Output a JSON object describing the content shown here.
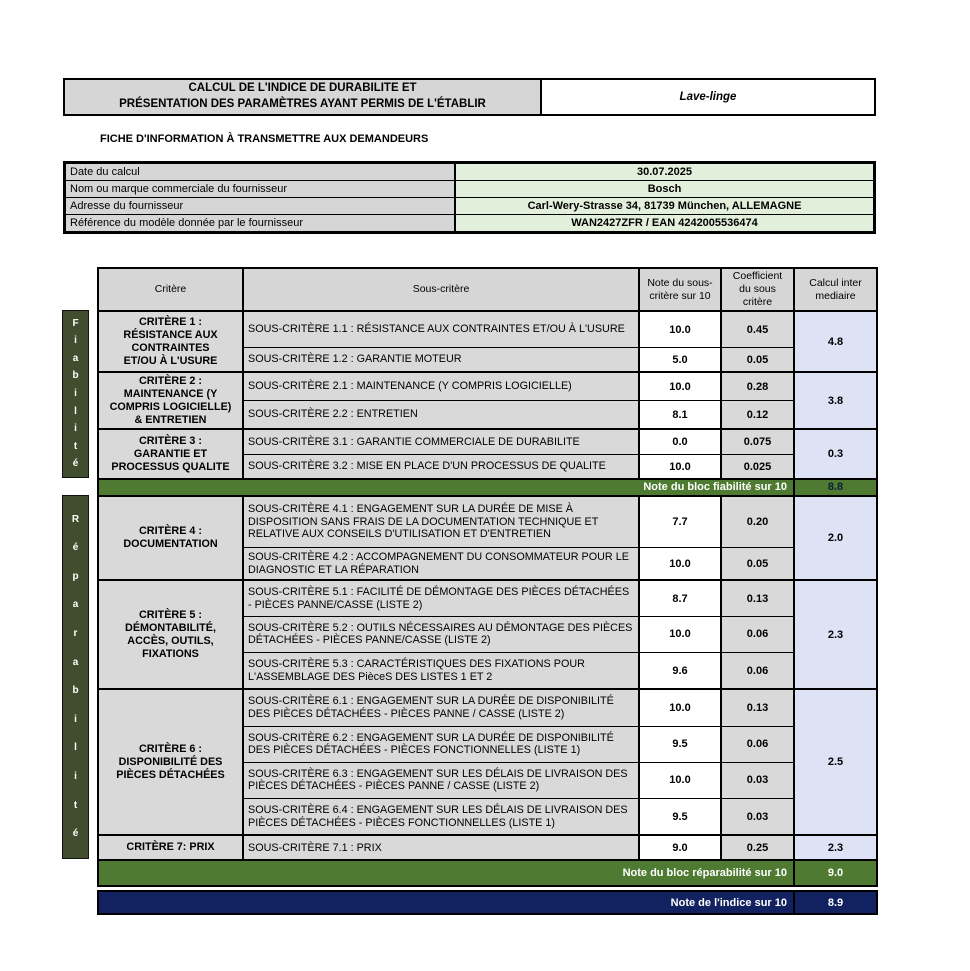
{
  "header": {
    "title_line1": "CALCUL DE L'INDICE DE DURABILITE ET",
    "title_line2": "PRÉSENTATION DES PARAMÈTRES AYANT PERMIS DE L'ÉTABLIR",
    "product": "Lave-linge"
  },
  "subtitle": "FICHE D'INFORMATION À TRANSMETTRE AUX DEMANDEURS",
  "info_table": {
    "rows": [
      {
        "label": "Date du calcul",
        "value": "30.07.2025"
      },
      {
        "label": "Nom ou marque commerciale du fournisseur",
        "value": "Bosch"
      },
      {
        "label": "Adresse du fournisseur",
        "value": "Carl-Wery-Strasse 34, 81739 München, ALLEMAGNE"
      },
      {
        "label": "Référence du modèle donnée par le fournisseur",
        "value": "WAN2427ZFR / EAN 4242005536474"
      }
    ]
  },
  "main_table": {
    "headers": {
      "critere": "Critère",
      "sous_critere": "Sous-critère",
      "note": "Note du sous-critère sur 10",
      "coefficient": "Coefficient du sous critère",
      "calcul": "Calcul inter mediaire"
    },
    "blocks": [
      {
        "band_label": "Fiabilité",
        "groups": [
          {
            "critere": "CRITÈRE 1 :\nRÉSISTANCE AUX\nCONTRAINTES\nET/OU À L'USURE",
            "calc": "4.8",
            "rows": [
              {
                "label": "SOUS-CRITÈRE 1.1 : RÉSISTANCE AUX CONTRAINTES ET/OU À L'USURE",
                "note": "10.0",
                "coef": "0.45"
              },
              {
                "label": "SOUS-CRITÈRE 1.2 : GARANTIE MOTEUR",
                "note": "5.0",
                "coef": "0.05"
              }
            ]
          },
          {
            "critere": "CRITÈRE 2 :\nMAINTENANCE (Y\nCOMPRIS LOGICIELLE)\n& ENTRETIEN",
            "calc": "3.8",
            "rows": [
              {
                "label": "SOUS-CRITÈRE 2.1 : MAINTENANCE (Y COMPRIS LOGICIELLE)",
                "note": "10.0",
                "coef": "0.28"
              },
              {
                "label": "SOUS-CRITÈRE 2.2 : ENTRETIEN",
                "note": "8.1",
                "coef": "0.12"
              }
            ]
          },
          {
            "critere": "CRITÈRE 3 :\nGARANTIE ET\nPROCESSUS QUALITE",
            "calc": "0.3",
            "rows": [
              {
                "label": "SOUS-CRITÈRE 3.1 : GARANTIE COMMERCIALE DE DURABILITE",
                "note": "0.0",
                "coef": "0.075"
              },
              {
                "label": "SOUS-CRITÈRE 3.2 : MISE EN PLACE D'UN PROCESSUS DE QUALITE",
                "note": "10.0",
                "coef": "0.025"
              }
            ]
          }
        ],
        "summary": {
          "label": "Note du bloc fiabilité sur 10",
          "value": "8.8"
        }
      },
      {
        "band_label": "Réparabilité",
        "groups": [
          {
            "critere": "CRITÈRE 4 :\nDOCUMENTATION",
            "calc": "2.0",
            "rows": [
              {
                "label": "SOUS-CRITÈRE 4.1 : ENGAGEMENT SUR LA DURÉE DE MISE À DISPOSITION SANS FRAIS DE LA DOCUMENTATION TECHNIQUE ET RELATIVE AUX CONSEILS D'UTILISATION ET D'ENTRETIEN",
                "note": "7.7",
                "coef": "0.20"
              },
              {
                "label": "SOUS-CRITÈRE 4.2 : ACCOMPAGNEMENT DU CONSOMMATEUR POUR LE DIAGNOSTIC ET LA RÉPARATION",
                "note": "10.0",
                "coef": "0.05"
              }
            ]
          },
          {
            "critere": "CRITÈRE 5 :\nDÉMONTABILITÉ,\nACCÈS, OUTILS,\nFIXATIONS",
            "calc": "2.3",
            "rows": [
              {
                "label": "SOUS-CRITÈRE 5.1 : FACILITÉ DE DÉMONTAGE DES PIÈCES DÉTACHÉES - PIÈCES PANNE/CASSE (LISTE 2)",
                "note": "8.7",
                "coef": "0.13"
              },
              {
                "label": "SOUS-CRITÈRE 5.2 : OUTILS NÉCESSAIRES AU DÉMONTAGE DES PIÈCES DÉTACHÉES - PIÈCES PANNE/CASSE (LISTE 2)",
                "note": "10.0",
                "coef": "0.06"
              },
              {
                "label": "SOUS-CRITÈRE 5.3 : CARACTÉRISTIQUES DES FIXATIONS POUR L'ASSEMBLAGE DES PièceS DES LISTES 1 ET 2",
                "note": "9.6",
                "coef": "0.06"
              }
            ]
          },
          {
            "critere": "CRITÈRE 6 :\nDISPONIBILITÉ DES\nPIÈCES DÉTACHÉES",
            "calc": "2.5",
            "rows": [
              {
                "label": "SOUS-CRITÈRE 6.1 : ENGAGEMENT SUR LA DURÉE DE DISPONIBILITÉ DES PIÈCES DÉTACHÉES - PIÈCES PANNE / CASSE (LISTE 2)",
                "note": "10.0",
                "coef": "0.13"
              },
              {
                "label": "SOUS-CRITÈRE 6.2 : ENGAGEMENT SUR LA DURÉE DE DISPONIBILITÉ DES PIÈCES DÉTACHÉES - PIÈCES FONCTIONNELLES (LISTE 1)",
                "note": "9.5",
                "coef": "0.06"
              },
              {
                "label": "SOUS-CRITÈRE 6.3 : ENGAGEMENT SUR LES DÉLAIS DE LIVRAISON DES PIÈCES DÉTACHÉES - PIÈCES PANNE / CASSE (LISTE 2)",
                "note": "10.0",
                "coef": "0.03"
              },
              {
                "label": "SOUS-CRITÈRE 6.4 : ENGAGEMENT SUR LES DÉLAIS DE LIVRAISON DES PIÈCES DÉTACHÉES - PIÈCES FONCTIONNELLES (LISTE 1)",
                "note": "9.5",
                "coef": "0.03"
              }
            ]
          },
          {
            "critere": "CRITÈRE 7: PRIX",
            "calc": "2.3",
            "rows": [
              {
                "label": "SOUS-CRITÈRE 7.1 : PRIX",
                "note": "9.0",
                "coef": "0.25"
              }
            ]
          }
        ],
        "summary": {
          "label": "Note du bloc réparabilité sur 10",
          "value": "9.0"
        }
      }
    ],
    "final": {
      "label": "Note de l'indice sur 10",
      "value": "8.9"
    }
  },
  "colors": {
    "band_green": "#404d2e",
    "block_score_green": "#4e7b31",
    "index_navy": "#122260",
    "info_value_green": "#e2efda",
    "calc_cell_blue": "#dde3f5",
    "cell_grey": "#d9d9d9"
  }
}
